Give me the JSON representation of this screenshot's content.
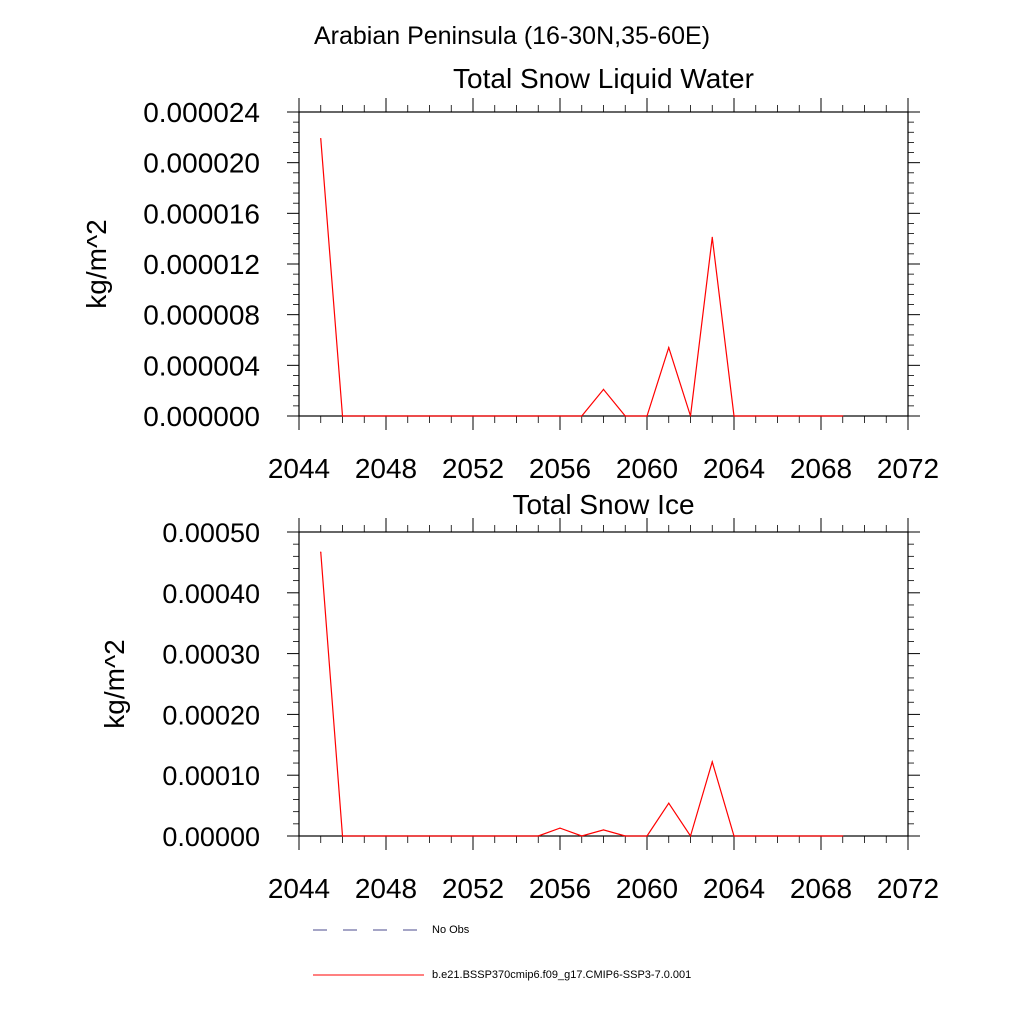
{
  "figure": {
    "region_title": "Arabian Peninsula (16-30N,35-60E)"
  },
  "legend": {
    "entries": [
      {
        "label": "No Obs",
        "style": "dashed",
        "color": "#4b4b8c"
      },
      {
        "label": "b.e21.BSSP370cmip6.f09_g17.CMIP6-SSP3-7.0.001",
        "style": "solid",
        "color": "#ff0000"
      }
    ]
  },
  "chart_data": [
    {
      "type": "line",
      "title": "Total Snow Liquid Water",
      "xlabel": "",
      "ylabel": "kg/m^2",
      "xlim": [
        2044,
        2072
      ],
      "ylim": [
        0,
        2.4e-05
      ],
      "x_ticks": [
        2044,
        2048,
        2052,
        2056,
        2060,
        2064,
        2068,
        2072
      ],
      "y_ticks": [
        0,
        4e-06,
        8e-06,
        1.2e-05,
        1.6e-05,
        2e-05,
        2.4e-05
      ],
      "y_tick_labels": [
        "0.000000",
        "0.000004",
        "0.000008",
        "0.000012",
        "0.000016",
        "0.000020",
        "0.000024"
      ],
      "grid": false,
      "series": [
        {
          "color": "#ff0000",
          "x": [
            2045,
            2046,
            2047,
            2048,
            2049,
            2050,
            2051,
            2052,
            2053,
            2054,
            2055,
            2056,
            2057,
            2058,
            2059,
            2060,
            2061,
            2062,
            2063,
            2064,
            2065,
            2066,
            2067,
            2068,
            2069
          ],
          "y": [
            2.19e-05,
            0,
            0,
            0,
            0,
            0,
            0,
            0,
            0,
            0,
            0,
            0,
            0,
            2.1e-06,
            0,
            0,
            5.4e-06,
            0,
            1.41e-05,
            0,
            0,
            0,
            0,
            0,
            0
          ]
        }
      ]
    },
    {
      "type": "line",
      "title": "Total Snow Ice",
      "xlabel": "",
      "ylabel": "kg/m^2",
      "xlim": [
        2044,
        2072
      ],
      "ylim": [
        0,
        0.0005
      ],
      "x_ticks": [
        2044,
        2048,
        2052,
        2056,
        2060,
        2064,
        2068,
        2072
      ],
      "y_ticks": [
        0,
        0.0001,
        0.0002,
        0.0003,
        0.0004,
        0.0005
      ],
      "y_tick_labels": [
        "0.00000",
        "0.00010",
        "0.00020",
        "0.00030",
        "0.00040",
        "0.00050"
      ],
      "grid": false,
      "series": [
        {
          "color": "#ff0000",
          "x": [
            2045,
            2046,
            2047,
            2048,
            2049,
            2050,
            2051,
            2052,
            2053,
            2054,
            2055,
            2056,
            2057,
            2058,
            2059,
            2060,
            2061,
            2062,
            2063,
            2064,
            2065,
            2066,
            2067,
            2068,
            2069
          ],
          "y": [
            0.000467,
            0,
            0,
            0,
            0,
            0,
            0,
            0,
            0,
            0,
            0,
            1.3e-05,
            0,
            1e-05,
            0,
            0,
            5.4e-05,
            0,
            0.000122,
            0,
            0,
            0,
            0,
            0,
            0
          ]
        }
      ]
    }
  ]
}
